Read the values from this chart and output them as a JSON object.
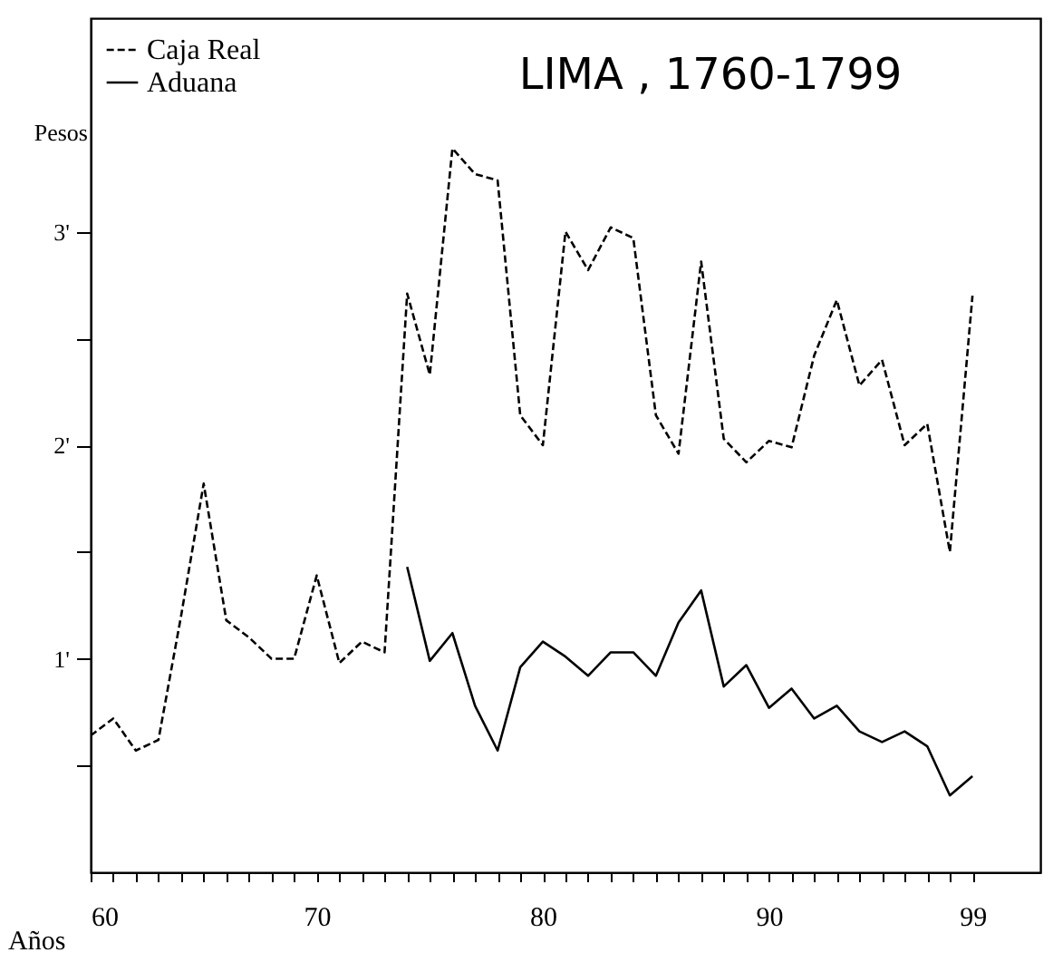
{
  "chart_data": {
    "type": "line",
    "title": "LIMA , 1760-1799",
    "xlabel": "Años",
    "ylabel": "Pesos",
    "x": [
      60,
      61,
      62,
      63,
      64,
      65,
      66,
      67,
      68,
      69,
      70,
      71,
      72,
      73,
      74,
      75,
      76,
      77,
      78,
      79,
      80,
      81,
      82,
      83,
      84,
      85,
      86,
      87,
      88,
      89,
      90,
      91,
      92,
      93,
      94,
      95,
      96,
      97,
      98,
      99
    ],
    "series": [
      {
        "name": "Caja Real",
        "color": "#000000",
        "line_style": "dashed",
        "values": [
          0.64,
          0.72,
          0.57,
          0.62,
          1.2,
          1.82,
          1.18,
          1.1,
          1.0,
          1.0,
          1.39,
          0.98,
          1.08,
          1.03,
          2.71,
          2.33,
          3.39,
          3.27,
          3.24,
          2.14,
          2.0,
          3.0,
          2.82,
          3.02,
          2.97,
          2.14,
          1.96,
          2.86,
          2.03,
          1.92,
          2.02,
          1.99,
          2.42,
          2.68,
          2.28,
          2.4,
          2.0,
          2.1,
          1.5,
          2.7
        ]
      },
      {
        "name": "Aduana",
        "color": "#000000",
        "line_style": "solid",
        "values": [
          null,
          null,
          null,
          null,
          null,
          null,
          null,
          null,
          null,
          null,
          null,
          null,
          null,
          null,
          1.43,
          0.99,
          1.12,
          0.78,
          0.57,
          0.96,
          1.08,
          1.01,
          0.92,
          1.03,
          1.03,
          0.92,
          1.17,
          1.32,
          0.87,
          0.97,
          0.77,
          0.86,
          0.72,
          0.78,
          0.66,
          0.61,
          0.66,
          0.59,
          0.36,
          0.45
        ]
      }
    ],
    "xlim": [
      60,
      102
    ],
    "xticks": [
      60,
      {
        "value": 61,
        "label": null
      },
      {
        "value": 62,
        "label": null
      },
      {
        "value": 63,
        "label": null
      },
      {
        "value": 64,
        "label": null
      },
      {
        "value": 65,
        "label": null
      },
      {
        "value": 66,
        "label": null
      },
      {
        "value": 67,
        "label": null
      },
      {
        "value": 68,
        "label": null
      },
      {
        "value": 69,
        "label": null
      },
      70,
      {
        "value": 71,
        "label": null
      },
      {
        "value": 72,
        "label": null
      },
      {
        "value": 73,
        "label": null
      },
      {
        "value": 74,
        "label": null
      },
      {
        "value": 75,
        "label": null
      },
      {
        "value": 76,
        "label": null
      },
      {
        "value": 77,
        "label": null
      },
      {
        "value": 78,
        "label": null
      },
      {
        "value": 79,
        "label": null
      },
      80,
      {
        "value": 81,
        "label": null
      },
      {
        "value": 82,
        "label": null
      },
      {
        "value": 83,
        "label": null
      },
      {
        "value": 84,
        "label": null
      },
      {
        "value": 85,
        "label": null
      },
      {
        "value": 86,
        "label": null
      },
      {
        "value": 87,
        "label": null
      },
      {
        "value": 88,
        "label": null
      },
      {
        "value": 89,
        "label": null
      },
      90,
      {
        "value": 91,
        "label": null
      },
      {
        "value": 92,
        "label": null
      },
      {
        "value": 93,
        "label": null
      },
      {
        "value": 94,
        "label": null
      },
      {
        "value": 95,
        "label": null
      },
      {
        "value": 96,
        "label": null
      },
      {
        "value": 97,
        "label": null
      },
      {
        "value": 98,
        "label": null
      },
      99
    ],
    "ylim": [
      0,
      4
    ],
    "yticks": [
      {
        "value": 0.5,
        "label": null
      },
      {
        "value": 1,
        "label": "1'"
      },
      {
        "value": 1.5,
        "label": null
      },
      {
        "value": 2,
        "label": "2'"
      },
      {
        "value": 2.5,
        "label": null
      },
      {
        "value": 3,
        "label": "3'"
      }
    ],
    "grid": false,
    "legend": "top left",
    "marker": "none"
  }
}
